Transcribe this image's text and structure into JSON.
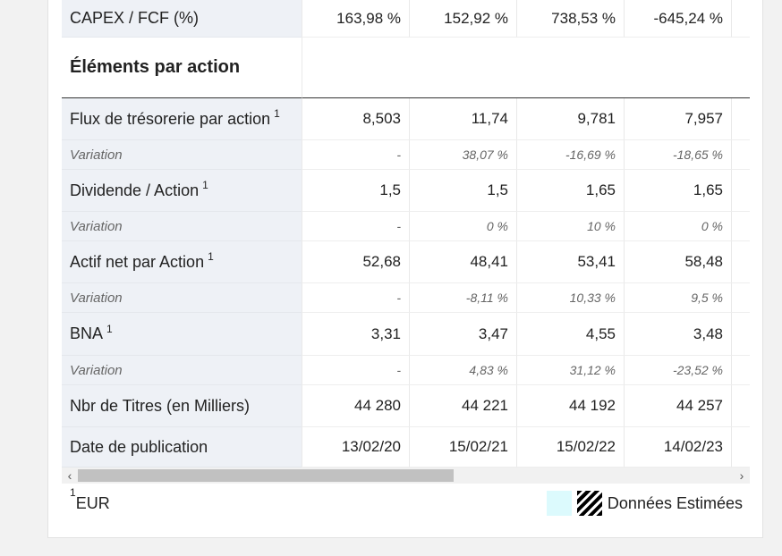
{
  "rows": {
    "capex_fcf": {
      "label": "CAPEX / FCF (%)",
      "values": [
        "163,98 %",
        "152,92 %",
        "738,53 %",
        "-645,24 %"
      ]
    },
    "section_title": "Éléments par action",
    "flux": {
      "label": "Flux de trésorerie par action",
      "sup": "1",
      "values": [
        "8,503",
        "11,74",
        "9,781",
        "7,957"
      ]
    },
    "flux_var": {
      "label": "Variation",
      "values": [
        "-",
        "38,07 %",
        "-16,69 %",
        "-18,65 %"
      ]
    },
    "dividende": {
      "label": "Dividende / Action",
      "sup": "1",
      "values": [
        "1,5",
        "1,5",
        "1,65",
        "1,65"
      ]
    },
    "dividende_var": {
      "label": "Variation",
      "values": [
        "-",
        "0 %",
        "10 %",
        "0 %"
      ]
    },
    "actif": {
      "label": "Actif net par Action",
      "sup": "1",
      "values": [
        "52,68",
        "48,41",
        "53,41",
        "58,48"
      ]
    },
    "actif_var": {
      "label": "Variation",
      "values": [
        "-",
        "-8,11 %",
        "10,33 %",
        "9,5 %"
      ]
    },
    "bna": {
      "label": "BNA",
      "sup": "1",
      "values": [
        "3,31",
        "3,47",
        "4,55",
        "3,48"
      ]
    },
    "bna_var": {
      "label": "Variation",
      "values": [
        "-",
        "4,83 %",
        "31,12 %",
        "-23,52 %"
      ]
    },
    "titres": {
      "label": "Nbr de Titres (en Milliers)",
      "values": [
        "44 280",
        "44 221",
        "44 192",
        "44 257"
      ]
    },
    "date": {
      "label": "Date de publication",
      "values": [
        "13/02/20",
        "15/02/21",
        "15/02/22",
        "14/02/23"
      ]
    }
  },
  "scrollbar": {
    "left_icon": "chevron-left-icon",
    "right_icon": "chevron-right-icon",
    "left_glyph": "‹",
    "right_glyph": "›"
  },
  "footer": {
    "note_sup": "1",
    "note_text": "EUR",
    "legend_label": "Données Estimées",
    "estimated_color": "#dcfafd"
  }
}
